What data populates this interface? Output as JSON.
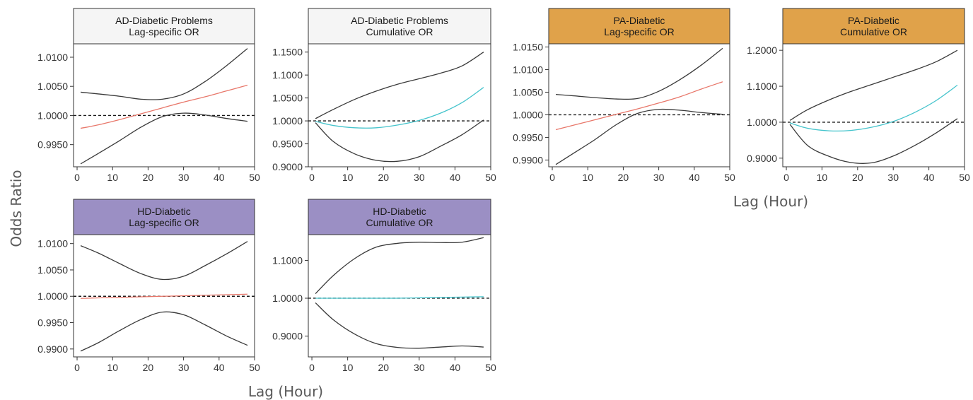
{
  "figure": {
    "y_axis_title": "Odds Ratio",
    "x_axis_title_top": "Lag (Hour)",
    "x_axis_title_bottom": "Lag (Hour)",
    "colors": {
      "ad_strip": "#f5f5f5",
      "pa_strip": "#e0a24a",
      "hd_strip": "#9b8fc4",
      "lag_specific_estimate": "#e8776a",
      "cumulative_estimate": "#45c4cc",
      "ci_bound": "#3a3a3a",
      "reference_line": "#1a1a1a"
    }
  },
  "chart_data": [
    {
      "type": "line",
      "id": "ad-lag",
      "title": [
        "AD-Diabetic Problems",
        "Lag-specific OR"
      ],
      "strip": "ad",
      "xlim": [
        -1,
        50
      ],
      "xticks": [
        0,
        10,
        20,
        30,
        40,
        50
      ],
      "ylim": [
        0.9912,
        1.0123
      ],
      "yticks": [
        0.995,
        1.0,
        1.005,
        1.01
      ],
      "yticklabels": [
        "0.9950",
        "1.0000",
        "1.0050",
        "1.0100"
      ],
      "reference": 1.0,
      "x": [
        1,
        6,
        12,
        18,
        24,
        30,
        36,
        42,
        48
      ],
      "series": [
        {
          "role": "upper",
          "values": [
            1.004,
            1.0037,
            1.0033,
            1.0028,
            1.0028,
            1.0037,
            1.0058,
            1.0085,
            1.0115
          ]
        },
        {
          "role": "estimate",
          "values": [
            0.9978,
            0.9984,
            0.9993,
            1.0003,
            1.0013,
            1.0023,
            1.0032,
            1.0042,
            1.0052
          ]
        },
        {
          "role": "lower",
          "values": [
            0.9917,
            0.9935,
            0.9957,
            0.998,
            0.9998,
            1.0004,
            1.0001,
            0.9995,
            0.999
          ]
        }
      ]
    },
    {
      "type": "line",
      "id": "ad-cum",
      "title": [
        "AD-Diabetic Problems",
        "Cumulative OR"
      ],
      "strip": "ad",
      "xlim": [
        -1,
        50
      ],
      "xticks": [
        0,
        10,
        20,
        30,
        40,
        50
      ],
      "ylim": [
        0.9,
        1.168
      ],
      "yticks": [
        0.9,
        0.95,
        1.0,
        1.05,
        1.1,
        1.15
      ],
      "yticklabels": [
        "0.9000",
        "0.9500",
        "1.0000",
        "1.0500",
        "1.1000",
        "1.1500"
      ],
      "reference": 1.0,
      "x": [
        1,
        6,
        12,
        18,
        24,
        30,
        36,
        42,
        48
      ],
      "series": [
        {
          "role": "upper",
          "values": [
            1.005,
            1.025,
            1.047,
            1.065,
            1.08,
            1.092,
            1.104,
            1.12,
            1.15
          ]
        },
        {
          "role": "estimate",
          "values": [
            0.999,
            0.99,
            0.985,
            0.985,
            0.991,
            1.001,
            1.017,
            1.04,
            1.073
          ]
        },
        {
          "role": "lower",
          "values": [
            0.996,
            0.955,
            0.928,
            0.914,
            0.912,
            0.922,
            0.945,
            0.97,
            1.002
          ]
        }
      ]
    },
    {
      "type": "line",
      "id": "pa-lag",
      "title": [
        "PA-Diabetic",
        "Lag-specific OR"
      ],
      "strip": "pa",
      "xlim": [
        -1,
        50
      ],
      "xticks": [
        0,
        10,
        20,
        30,
        40,
        50
      ],
      "ylim": [
        0.9885,
        1.0157
      ],
      "yticks": [
        0.99,
        0.995,
        1.0,
        1.005,
        1.01,
        1.015
      ],
      "yticklabels": [
        "0.9900",
        "0.9950",
        "1.0000",
        "1.0050",
        "1.0100",
        "1.0150"
      ],
      "reference": 1.0,
      "x": [
        1,
        6,
        12,
        18,
        24,
        30,
        36,
        42,
        48
      ],
      "series": [
        {
          "role": "upper",
          "values": [
            1.0045,
            1.0042,
            1.0038,
            1.0035,
            1.0036,
            1.0052,
            1.0078,
            1.011,
            1.0147
          ]
        },
        {
          "role": "estimate",
          "values": [
            0.9967,
            0.9977,
            0.9989,
            1.0001,
            1.0013,
            1.0026,
            1.004,
            1.0057,
            1.0073
          ]
        },
        {
          "role": "lower",
          "values": [
            0.989,
            0.9915,
            0.9945,
            0.9978,
            1.0003,
            1.0012,
            1.001,
            1.0005,
            1.0001
          ]
        }
      ]
    },
    {
      "type": "line",
      "id": "pa-cum",
      "title": [
        "PA-Diabetic",
        "Cumulative OR"
      ],
      "strip": "pa",
      "xlim": [
        -1,
        50
      ],
      "xticks": [
        0,
        10,
        20,
        30,
        40,
        50
      ],
      "ylim": [
        0.876,
        1.218
      ],
      "yticks": [
        0.9,
        1.0,
        1.1,
        1.2
      ],
      "yticklabels": [
        "0.9000",
        "1.0000",
        "1.1000",
        "1.2000"
      ],
      "reference": 1.0,
      "x": [
        1,
        6,
        12,
        18,
        24,
        30,
        36,
        42,
        48
      ],
      "series": [
        {
          "role": "upper",
          "values": [
            1.005,
            1.035,
            1.062,
            1.085,
            1.105,
            1.125,
            1.145,
            1.168,
            1.2
          ]
        },
        {
          "role": "estimate",
          "values": [
            0.998,
            0.983,
            0.976,
            0.977,
            0.986,
            1.002,
            1.027,
            1.06,
            1.103
          ]
        },
        {
          "role": "lower",
          "values": [
            0.994,
            0.935,
            0.905,
            0.888,
            0.887,
            0.906,
            0.935,
            0.97,
            1.01
          ]
        }
      ]
    },
    {
      "type": "line",
      "id": "hd-lag",
      "title": [
        "HD-Diabetic",
        "Lag-specific OR"
      ],
      "strip": "hd",
      "xlim": [
        -1,
        50
      ],
      "xticks": [
        0,
        10,
        20,
        30,
        40,
        50
      ],
      "ylim": [
        0.9885,
        1.0117
      ],
      "yticks": [
        0.99,
        0.995,
        1.0,
        1.005,
        1.01
      ],
      "yticklabels": [
        "0.9900",
        "0.9950",
        "1.0000",
        "1.0050",
        "1.0100"
      ],
      "reference": 1.0,
      "x": [
        1,
        6,
        12,
        18,
        24,
        30,
        36,
        42,
        48
      ],
      "series": [
        {
          "role": "upper",
          "values": [
            1.0096,
            1.0082,
            1.0062,
            1.0043,
            1.0032,
            1.0038,
            1.0058,
            1.008,
            1.0104
          ]
        },
        {
          "role": "estimate",
          "values": [
            0.9996,
            0.9997,
            0.9998,
            0.9999,
            1.0,
            1.0001,
            1.0002,
            1.0003,
            1.0004
          ]
        },
        {
          "role": "lower",
          "values": [
            0.9896,
            0.9912,
            0.9935,
            0.9956,
            0.997,
            0.9965,
            0.9946,
            0.9925,
            0.9907
          ]
        }
      ]
    },
    {
      "type": "line",
      "id": "hd-cum",
      "title": [
        "HD-Diabetic",
        "Cumulative OR"
      ],
      "strip": "hd",
      "xlim": [
        -1,
        50
      ],
      "xticks": [
        0,
        10,
        20,
        30,
        40,
        50
      ],
      "ylim": [
        0.845,
        1.168
      ],
      "yticks": [
        0.9,
        1.0,
        1.1
      ],
      "yticklabels": [
        "0.9000",
        "1.0000",
        "1.1000"
      ],
      "reference": 1.0,
      "x": [
        1,
        6,
        12,
        18,
        24,
        30,
        36,
        42,
        48
      ],
      "series": [
        {
          "role": "upper",
          "values": [
            1.012,
            1.06,
            1.105,
            1.135,
            1.145,
            1.148,
            1.147,
            1.148,
            1.16
          ]
        },
        {
          "role": "estimate",
          "values": [
            1.0,
            1.0,
            1.0,
            1.0,
            1.0,
            1.001,
            1.002,
            1.003,
            1.004
          ]
        },
        {
          "role": "lower",
          "values": [
            0.988,
            0.943,
            0.905,
            0.88,
            0.87,
            0.868,
            0.871,
            0.874,
            0.871
          ]
        }
      ]
    }
  ]
}
